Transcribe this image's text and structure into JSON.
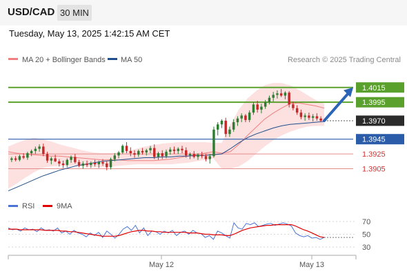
{
  "header": {
    "pair": "USD/CAD",
    "timeframe": "30 MIN"
  },
  "timestamp": "Tuesday, May 13, 2025 1:42:15 AM CET",
  "colors": {
    "up": "#2e7d32",
    "down": "#c62828",
    "ma20": "#f08080",
    "ma50": "#1f4e8c",
    "band_fill": "#fde0e0",
    "green_line": "#5aa02c",
    "blue_line": "#2a5caa",
    "red_line": "#e58c8c",
    "rsi": "#4a74d4",
    "rsi_ma": "#e00000",
    "arrow": "#2b63b6"
  },
  "chart_data": [
    {
      "type": "candlestick",
      "legend": [
        {
          "label": "MA 20 + Bollinger Bands",
          "color": "#f08080"
        },
        {
          "label": "MA 50",
          "color": "#1f4e8c"
        }
      ],
      "attribution": "Research © 2025 Trading Central",
      "x_ticks": [
        "May 12",
        "May 13"
      ],
      "ylim": [
        1.387,
        1.404
      ],
      "levels": [
        {
          "value": 1.4015,
          "label": "1.4015",
          "style": "green"
        },
        {
          "value": 1.3995,
          "label": "1.3995",
          "style": "green"
        },
        {
          "value": 1.397,
          "label": "1.3970",
          "style": "current"
        },
        {
          "value": 1.3945,
          "label": "1.3945",
          "style": "blue"
        },
        {
          "value": 1.3925,
          "label": "1.3925",
          "style": "red"
        },
        {
          "value": 1.3905,
          "label": "1.3905",
          "style": "red"
        }
      ],
      "candles": [
        [
          1.3917,
          1.3921,
          1.3914,
          1.3919
        ],
        [
          1.3919,
          1.3922,
          1.3915,
          1.3917
        ],
        [
          1.3917,
          1.3924,
          1.3915,
          1.3922
        ],
        [
          1.3922,
          1.3926,
          1.3918,
          1.392
        ],
        [
          1.392,
          1.3928,
          1.3917,
          1.3926
        ],
        [
          1.3926,
          1.3931,
          1.3922,
          1.3929
        ],
        [
          1.3929,
          1.3935,
          1.3925,
          1.3932
        ],
        [
          1.3932,
          1.3938,
          1.3928,
          1.3935
        ],
        [
          1.3935,
          1.3939,
          1.3922,
          1.3925
        ],
        [
          1.3925,
          1.3928,
          1.3913,
          1.3916
        ],
        [
          1.3916,
          1.3921,
          1.3911,
          1.3919
        ],
        [
          1.3919,
          1.3924,
          1.3914,
          1.3915
        ],
        [
          1.3915,
          1.3918,
          1.3908,
          1.3912
        ],
        [
          1.3912,
          1.3916,
          1.3906,
          1.391
        ],
        [
          1.391,
          1.3919,
          1.3907,
          1.3917
        ],
        [
          1.3917,
          1.3923,
          1.3913,
          1.3921
        ],
        [
          1.3921,
          1.3925,
          1.3912,
          1.3914
        ],
        [
          1.3914,
          1.3917,
          1.3907,
          1.3909
        ],
        [
          1.3909,
          1.3915,
          1.3905,
          1.3912
        ],
        [
          1.3912,
          1.3916,
          1.3907,
          1.391
        ],
        [
          1.391,
          1.3915,
          1.3906,
          1.3913
        ],
        [
          1.3913,
          1.3917,
          1.3908,
          1.3911
        ],
        [
          1.3911,
          1.3916,
          1.3906,
          1.3914
        ],
        [
          1.3914,
          1.3918,
          1.3909,
          1.3912
        ],
        [
          1.3912,
          1.3915,
          1.3903,
          1.3907
        ],
        [
          1.3907,
          1.392,
          1.3904,
          1.3918
        ],
        [
          1.3918,
          1.3926,
          1.3915,
          1.3923
        ],
        [
          1.3923,
          1.3929,
          1.3919,
          1.3927
        ],
        [
          1.3927,
          1.3938,
          1.3925,
          1.3936
        ],
        [
          1.3936,
          1.3941,
          1.3926,
          1.3929
        ],
        [
          1.3929,
          1.3934,
          1.3922,
          1.3926
        ],
        [
          1.3926,
          1.393,
          1.392,
          1.3924
        ],
        [
          1.3924,
          1.3931,
          1.3921,
          1.3929
        ],
        [
          1.3929,
          1.3933,
          1.3924,
          1.3927
        ],
        [
          1.3927,
          1.3932,
          1.3923,
          1.393
        ],
        [
          1.393,
          1.3936,
          1.3926,
          1.3933
        ],
        [
          1.3933,
          1.3938,
          1.3918,
          1.3921
        ],
        [
          1.3921,
          1.3928,
          1.3917,
          1.3926
        ],
        [
          1.3926,
          1.393,
          1.3918,
          1.3922
        ],
        [
          1.3922,
          1.3931,
          1.3919,
          1.3928
        ],
        [
          1.3928,
          1.3934,
          1.3924,
          1.3931
        ],
        [
          1.3931,
          1.3935,
          1.3925,
          1.3929
        ],
        [
          1.3929,
          1.3934,
          1.3925,
          1.3932
        ],
        [
          1.3932,
          1.3936,
          1.3926,
          1.393
        ],
        [
          1.393,
          1.3934,
          1.392,
          1.3923
        ],
        [
          1.3923,
          1.3927,
          1.3918,
          1.3925
        ],
        [
          1.3925,
          1.3929,
          1.3919,
          1.3921
        ],
        [
          1.3921,
          1.3926,
          1.3917,
          1.3924
        ],
        [
          1.3924,
          1.3928,
          1.3919,
          1.3922
        ],
        [
          1.3922,
          1.3925,
          1.3915,
          1.3918
        ],
        [
          1.3918,
          1.3925,
          1.3912,
          1.3922
        ],
        [
          1.3922,
          1.3962,
          1.392,
          1.3958
        ],
        [
          1.3958,
          1.3968,
          1.395,
          1.3965
        ],
        [
          1.3965,
          1.3972,
          1.396,
          1.397
        ],
        [
          1.397,
          1.3974,
          1.3948,
          1.3952
        ],
        [
          1.3952,
          1.3962,
          1.3948,
          1.3958
        ],
        [
          1.3958,
          1.3972,
          1.3955,
          1.3968
        ],
        [
          1.3968,
          1.3976,
          1.3963,
          1.3973
        ],
        [
          1.3973,
          1.398,
          1.3968,
          1.3977
        ],
        [
          1.3977,
          1.3979,
          1.3968,
          1.3971
        ],
        [
          1.3971,
          1.3984,
          1.3968,
          1.3981
        ],
        [
          1.3981,
          1.3995,
          1.3978,
          1.3992
        ],
        [
          1.3992,
          1.3997,
          1.3981,
          1.3985
        ],
        [
          1.3985,
          1.3993,
          1.398,
          1.3989
        ],
        [
          1.3989,
          1.3998,
          1.3986,
          1.3995
        ],
        [
          1.3995,
          1.4004,
          1.3992,
          1.4001
        ],
        [
          1.4001,
          1.4009,
          1.3996,
          1.4005
        ],
        [
          1.4005,
          1.4011,
          1.4,
          1.4007
        ],
        [
          1.4007,
          1.4013,
          1.4002,
          1.4004
        ],
        [
          1.4004,
          1.401,
          1.3999,
          1.4008
        ],
        [
          1.4008,
          1.401,
          1.3988,
          1.3992
        ],
        [
          1.3992,
          1.3996,
          1.3984,
          1.3987
        ],
        [
          1.3987,
          1.3991,
          1.3978,
          1.3981
        ],
        [
          1.3981,
          1.3985,
          1.3972,
          1.3975
        ],
        [
          1.3975,
          1.398,
          1.397,
          1.3977
        ],
        [
          1.3977,
          1.3981,
          1.3971,
          1.3974
        ],
        [
          1.3974,
          1.3979,
          1.3969,
          1.3976
        ],
        [
          1.3976,
          1.398,
          1.397,
          1.3973
        ],
        [
          1.3973,
          1.3976,
          1.3968,
          1.397
        ]
      ],
      "ma20": [
        1.3928,
        1.3926,
        1.3925,
        1.3924,
        1.3923,
        1.3922,
        1.3922,
        1.3921,
        1.392,
        1.3919,
        1.3918,
        1.3917,
        1.3917,
        1.3917,
        1.3916,
        1.3916,
        1.3916,
        1.3916,
        1.3917,
        1.3918,
        1.392,
        1.3922,
        1.3924,
        1.3926,
        1.3928,
        1.3926,
        1.3928,
        1.3938,
        1.395,
        1.3961,
        1.3972,
        1.398,
        1.3987,
        1.3993,
        1.3994,
        1.3992,
        1.399,
        1.3987
      ],
      "ma50": [
        1.3875,
        1.388,
        1.3885,
        1.389,
        1.3895,
        1.3899,
        1.3903,
        1.3906,
        1.3909,
        1.3911,
        1.3913,
        1.3915,
        1.3916,
        1.3917,
        1.3918,
        1.3919,
        1.392,
        1.392,
        1.3921,
        1.3921,
        1.3922,
        1.3922,
        1.3923,
        1.3923,
        1.3924,
        1.3925,
        1.3932,
        1.394,
        1.3947,
        1.3952,
        1.3956,
        1.396,
        1.3963,
        1.3965,
        1.3966,
        1.3967,
        1.3968,
        1.3969
      ],
      "bb_upper": [
        1.3935,
        1.394,
        1.3944,
        1.3947,
        1.3945,
        1.3942,
        1.3938,
        1.3935,
        1.3932,
        1.3929,
        1.3927,
        1.3926,
        1.3926,
        1.3927,
        1.3929,
        1.3932,
        1.3935,
        1.3937,
        1.3939,
        1.394,
        1.3941,
        1.3941,
        1.3941,
        1.3941,
        1.394,
        1.394,
        1.3965,
        1.3985,
        1.4,
        1.401,
        1.4018,
        1.4021,
        1.4021,
        1.4018,
        1.4012,
        1.4005,
        1.3998,
        1.3993
      ],
      "bb_lower": [
        1.3878,
        1.3885,
        1.3893,
        1.39,
        1.3906,
        1.3908,
        1.3909,
        1.3909,
        1.3909,
        1.3908,
        1.3907,
        1.3907,
        1.3908,
        1.3909,
        1.391,
        1.3911,
        1.3911,
        1.3911,
        1.3911,
        1.3911,
        1.3912,
        1.3913,
        1.3915,
        1.3917,
        1.3919,
        1.3905,
        1.3905,
        1.3908,
        1.3915,
        1.3925,
        1.3935,
        1.3943,
        1.395,
        1.3955,
        1.3959,
        1.3962,
        1.3963,
        1.3963
      ],
      "forecast_arrow": {
        "from": 1.397,
        "to": 1.4015
      }
    },
    {
      "type": "line",
      "legend": [
        {
          "label": "RSI",
          "color": "#4a74d4"
        },
        {
          "label": "9MA",
          "color": "#e00000"
        }
      ],
      "y_ticks": [
        "70",
        "50",
        "30"
      ],
      "ylim": [
        30,
        70
      ],
      "rsi": [
        60,
        57,
        58,
        55,
        60,
        57,
        58,
        54,
        60,
        56,
        57,
        55,
        60,
        52,
        55,
        50,
        56,
        52,
        50,
        46,
        52,
        48,
        53,
        45,
        55,
        50,
        44,
        50,
        58,
        62,
        56,
        64,
        52,
        60,
        48,
        55,
        54,
        50,
        55,
        52,
        56,
        48,
        53,
        55,
        50,
        56,
        52,
        51,
        45,
        48,
        42,
        55,
        52,
        48,
        44,
        68,
        60,
        58,
        67,
        65,
        68,
        62,
        64,
        66,
        67,
        64,
        66,
        68,
        66,
        63,
        52,
        48,
        46,
        48,
        44,
        45,
        42,
        45
      ],
      "rsi_ma": [
        58,
        58,
        58,
        57,
        57,
        57,
        57,
        57,
        57,
        56,
        56,
        56,
        56,
        55,
        55,
        54,
        54,
        53,
        52,
        51,
        50,
        49,
        48,
        47,
        47,
        47,
        47,
        48,
        50,
        52,
        54,
        55,
        56,
        56,
        55,
        55,
        54,
        54,
        53,
        53,
        53,
        53,
        53,
        53,
        52,
        52,
        52,
        51,
        50,
        50,
        49,
        49,
        49,
        48,
        48,
        50,
        53,
        56,
        58,
        60,
        61,
        62,
        63,
        64,
        64,
        65,
        65,
        65,
        65,
        65,
        63,
        60,
        57,
        55,
        52,
        49,
        46,
        45
      ]
    }
  ]
}
